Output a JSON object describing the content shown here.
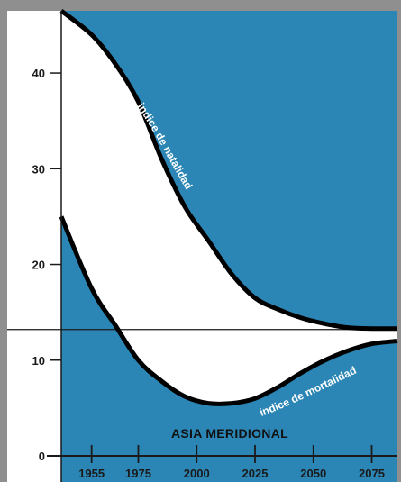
{
  "chart_data": {
    "type": "area",
    "title": "ASIA MERIDIONAL",
    "xlabel": "",
    "ylabel": "",
    "xlim": [
      1942,
      2086
    ],
    "ylim": [
      0,
      46.5
    ],
    "x_ticks": [
      1955,
      1975,
      2000,
      2025,
      2050,
      2075
    ],
    "x_tick_labels": [
      "1955",
      "1975",
      "2000",
      "2025",
      "2050",
      "2075"
    ],
    "y_ticks": [
      0,
      10,
      20,
      30,
      40
    ],
    "y_tick_labels": [
      "0",
      "10",
      "20",
      "30",
      "40"
    ],
    "reference_line": 13.2,
    "grid": false,
    "series": [
      {
        "name": "indice de natalidad",
        "x": [
          1942,
          1955,
          1965,
          1975,
          1985,
          1995,
          2005,
          2015,
          2025,
          2035,
          2045,
          2055,
          2065,
          2075,
          2086
        ],
        "values": [
          46.5,
          44.0,
          41.0,
          37.0,
          31.0,
          26.0,
          22.5,
          19.0,
          16.5,
          15.3,
          14.4,
          13.8,
          13.4,
          13.3,
          13.3
        ]
      },
      {
        "name": "indice de mortalidad",
        "x": [
          1942,
          1955,
          1965,
          1975,
          1985,
          1995,
          2005,
          2015,
          2025,
          2035,
          2045,
          2055,
          2065,
          2075,
          2086
        ],
        "values": [
          25.0,
          17.5,
          13.7,
          10.0,
          7.8,
          6.2,
          5.5,
          5.5,
          6.0,
          7.2,
          8.7,
          10.0,
          11.0,
          11.7,
          12.0
        ]
      }
    ],
    "colors": {
      "background": "#2b86b5",
      "between_curves": "#ffffff",
      "left_panel": "#ffffff",
      "curve": "#000000",
      "frame": "#8f8f8f"
    }
  }
}
